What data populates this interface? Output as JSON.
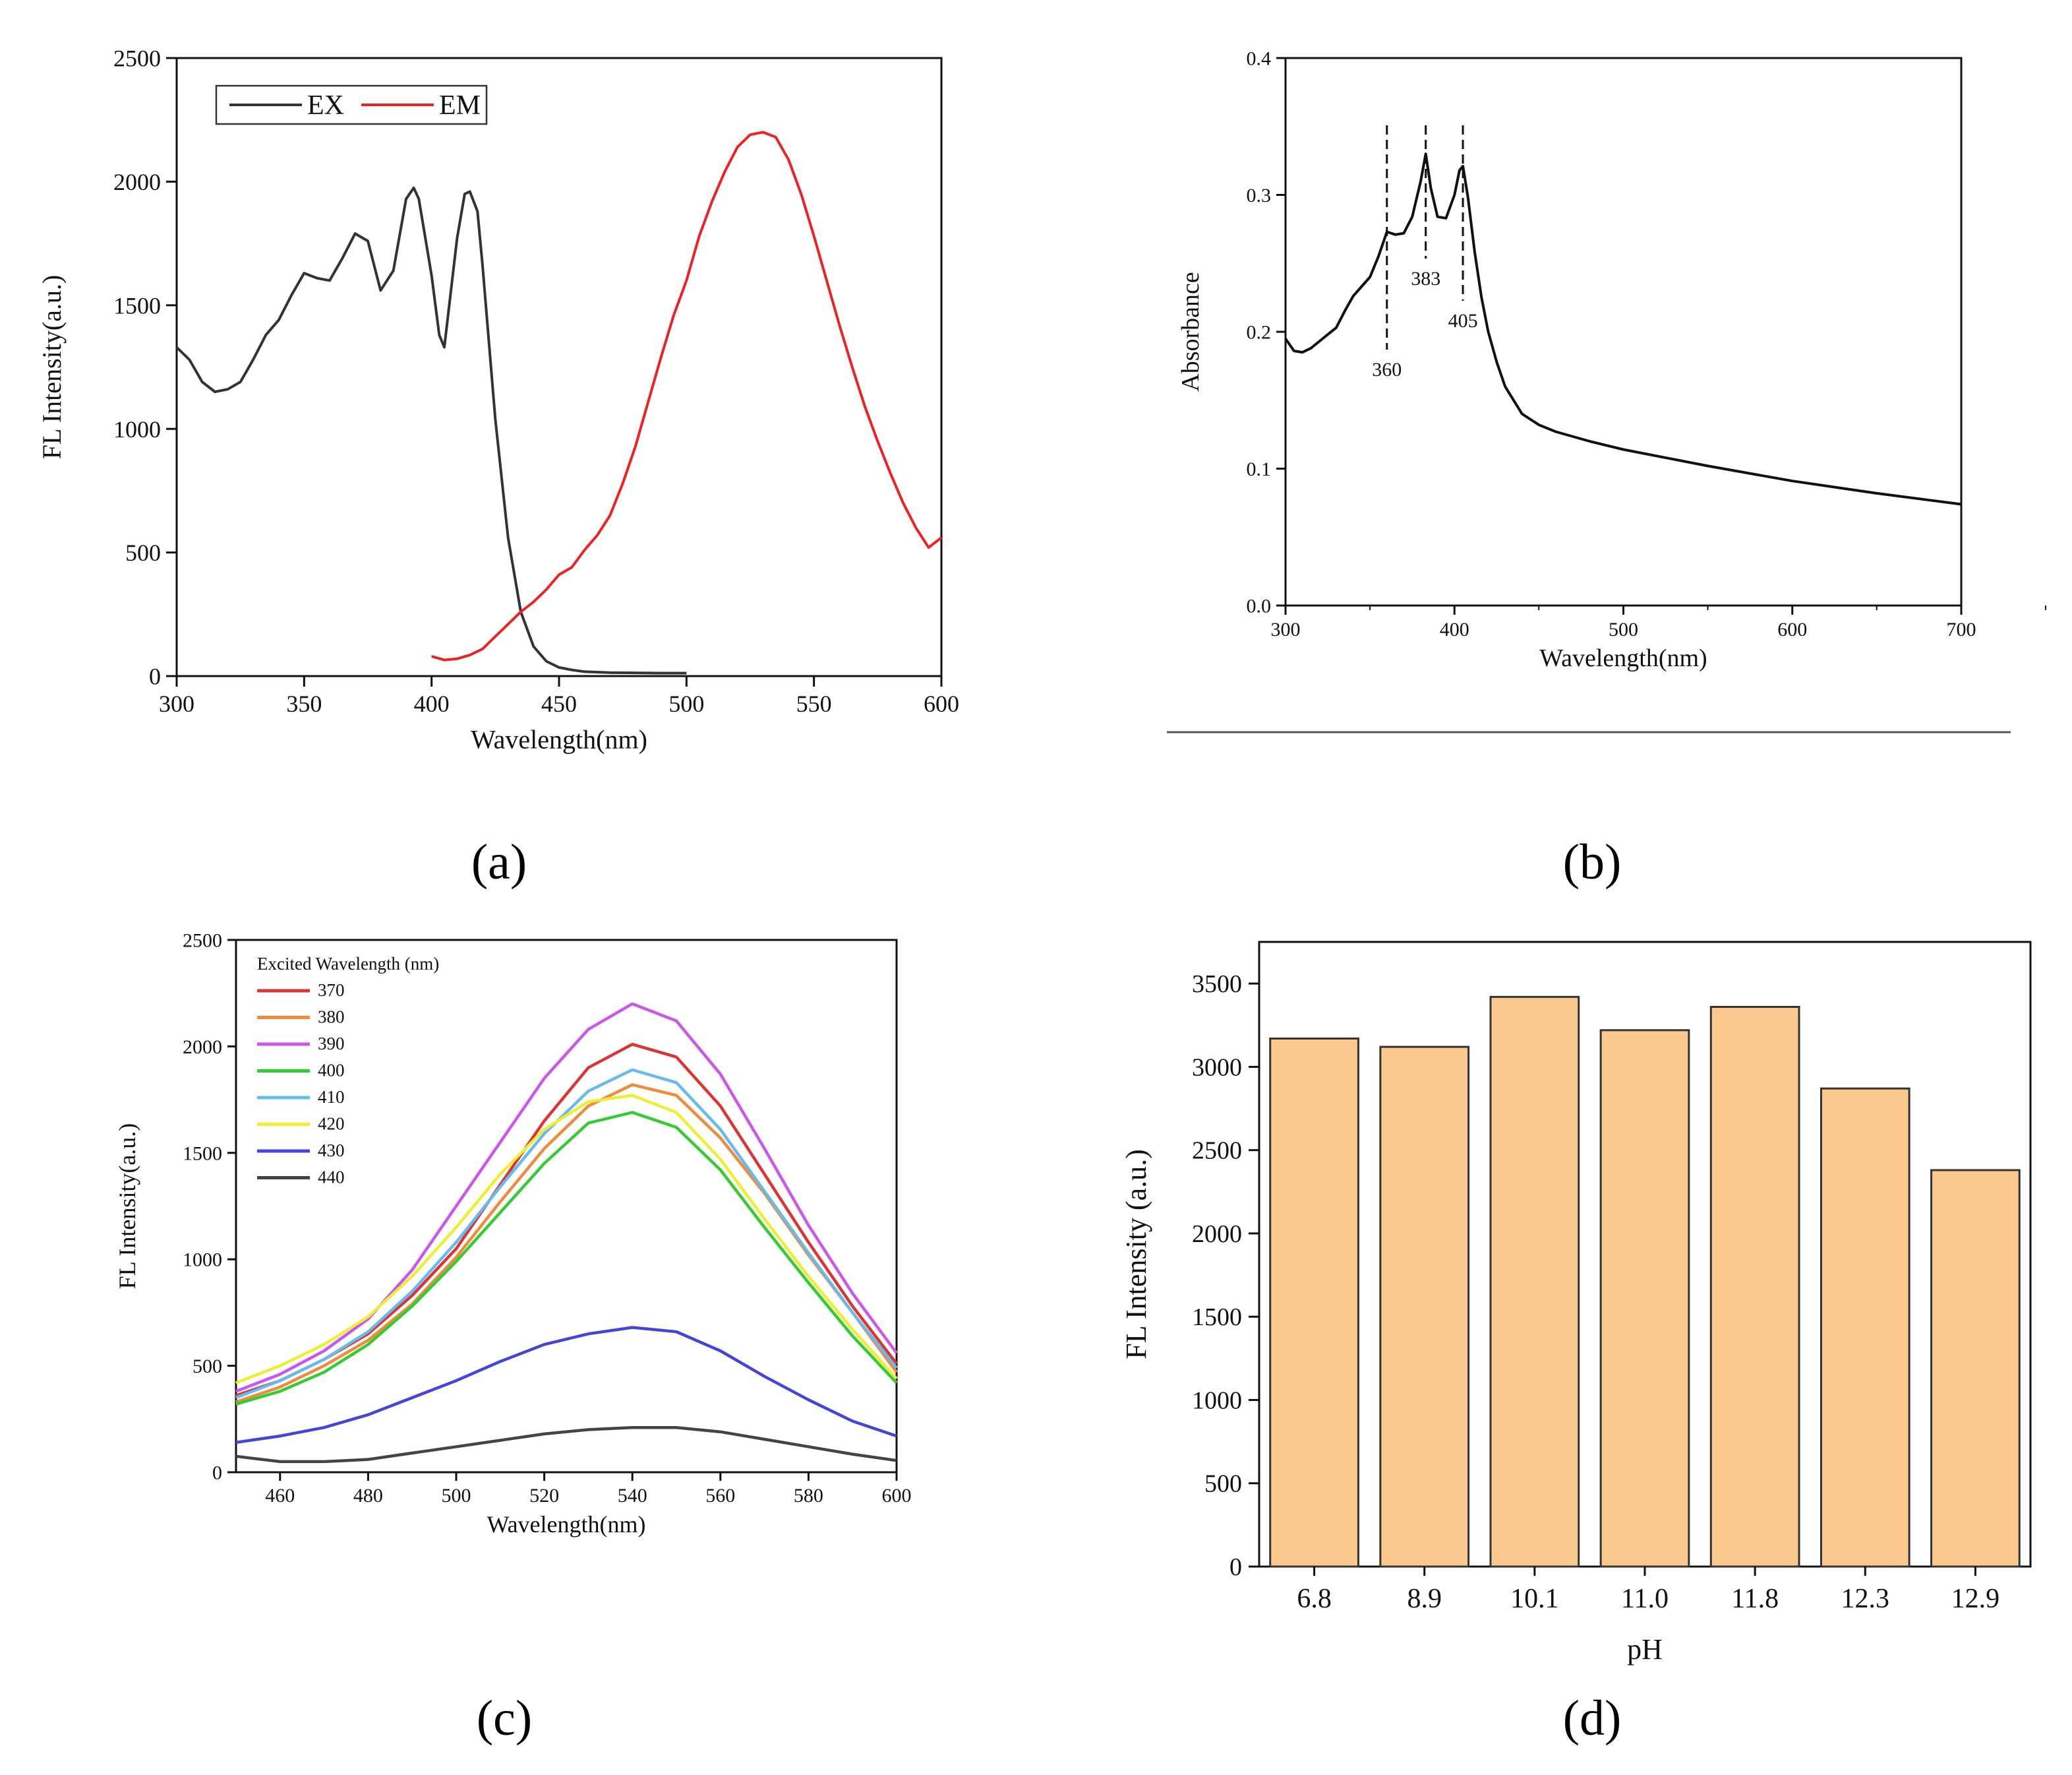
{
  "panels": {
    "a": {
      "label": "(a)",
      "chart_data": {
        "type": "line",
        "xlabel": "Wavelength(nm)",
        "ylabel": "FL Intensity(a.u.)",
        "xlim": [
          300,
          600
        ],
        "ylim": [
          0,
          2500
        ],
        "xticks": [
          300,
          350,
          400,
          450,
          500,
          550,
          600
        ],
        "yticks": [
          0,
          500,
          1000,
          1500,
          2000,
          2500
        ],
        "legend_position": "top-left",
        "series": [
          {
            "name": "EX",
            "color": "#333333",
            "x": [
              300,
              305,
              310,
              315,
              320,
              325,
              330,
              335,
              340,
              345,
              350,
              355,
              360,
              365,
              370,
              375,
              380,
              385,
              390,
              393,
              395,
              400,
              403,
              405,
              410,
              413,
              415,
              418,
              420,
              425,
              430,
              435,
              440,
              445,
              450,
              455,
              460,
              470,
              480,
              490,
              500
            ],
            "y": [
              1330,
              1280,
              1190,
              1150,
              1160,
              1190,
              1280,
              1380,
              1440,
              1540,
              1630,
              1610,
              1600,
              1690,
              1790,
              1760,
              1560,
              1640,
              1930,
              1975,
              1930,
              1620,
              1380,
              1330,
              1770,
              1950,
              1960,
              1880,
              1660,
              1040,
              560,
              260,
              120,
              60,
              35,
              25,
              18,
              14,
              13,
              12,
              12
            ]
          },
          {
            "name": "EM",
            "color": "#ee2222",
            "x": [
              400,
              405,
              410,
              415,
              420,
              425,
              430,
              435,
              440,
              445,
              450,
              455,
              460,
              465,
              470,
              475,
              480,
              485,
              490,
              495,
              500,
              505,
              510,
              515,
              520,
              525,
              530,
              535,
              540,
              545,
              550,
              555,
              560,
              565,
              570,
              575,
              580,
              585,
              590,
              595,
              600
            ],
            "y": [
              80,
              65,
              70,
              85,
              110,
              160,
              210,
              260,
              300,
              350,
              410,
              440,
              510,
              570,
              650,
              780,
              930,
              1110,
              1290,
              1460,
              1600,
              1780,
              1920,
              2040,
              2140,
              2190,
              2200,
              2180,
              2090,
              1950,
              1780,
              1600,
              1420,
              1250,
              1090,
              950,
              820,
              700,
              600,
              520,
              560
            ]
          }
        ]
      }
    },
    "b": {
      "label": "(b)",
      "chart_data": {
        "type": "line",
        "xlabel": "Wavelength(nm)",
        "ylabel": "Absorbance",
        "xlim": [
          300,
          700
        ],
        "ylim": [
          0.0,
          0.4
        ],
        "xticks": [
          300,
          400,
          500,
          600,
          700
        ],
        "xtick_labels": [
          "300",
          "400",
          "500",
          "600",
          "700"
        ],
        "yticks": [
          0.0,
          0.1,
          0.2,
          0.3,
          0.4
        ],
        "ytick_labels": [
          "0.0",
          "0.1",
          "0.2",
          "0.3",
          "0.4"
        ],
        "annotations": [
          {
            "text": "360",
            "x": 360
          },
          {
            "text": "383",
            "x": 383
          },
          {
            "text": "405",
            "x": 405
          }
        ],
        "series": [
          {
            "name": "Absorbance",
            "color": "#111111",
            "x": [
              300,
              305,
              310,
              315,
              320,
              325,
              330,
              335,
              340,
              345,
              350,
              355,
              360,
              365,
              370,
              375,
              380,
              383,
              386,
              390,
              395,
              400,
              403,
              405,
              408,
              412,
              416,
              420,
              425,
              430,
              440,
              450,
              460,
              480,
              500,
              550,
              600,
              650,
              700
            ],
            "y": [
              0.195,
              0.186,
              0.185,
              0.188,
              0.193,
              0.198,
              0.203,
              0.215,
              0.226,
              0.233,
              0.24,
              0.255,
              0.273,
              0.271,
              0.272,
              0.284,
              0.31,
              0.33,
              0.305,
              0.284,
              0.283,
              0.3,
              0.318,
              0.321,
              0.298,
              0.258,
              0.225,
              0.2,
              0.178,
              0.16,
              0.14,
              0.132,
              0.127,
              0.12,
              0.114,
              0.102,
              0.091,
              0.082,
              0.074
            ]
          }
        ]
      }
    },
    "c": {
      "label": "(c)",
      "chart_data": {
        "type": "line",
        "xlabel": "Wavelength(nm)",
        "ylabel": "FL Intensity(a.u.)",
        "xlim": [
          450,
          600
        ],
        "ylim": [
          0,
          2500
        ],
        "xticks": [
          460,
          480,
          500,
          520,
          540,
          560,
          580,
          600
        ],
        "yticks": [
          0,
          500,
          1000,
          1500,
          2000,
          2500
        ],
        "legend_title": "Excited Wavelength (nm)",
        "legend_position": "top-left",
        "x": [
          450,
          460,
          470,
          480,
          490,
          500,
          510,
          520,
          530,
          540,
          550,
          560,
          570,
          580,
          590,
          600
        ],
        "series": [
          {
            "name": "370",
            "color": "#dd3333",
            "values": [
              360,
              430,
              530,
              650,
              830,
              1050,
              1350,
              1650,
              1900,
              2010,
              1950,
              1720,
              1400,
              1080,
              780,
              510
            ]
          },
          {
            "name": "380",
            "color": "#f08a3c",
            "values": [
              330,
              400,
              500,
              620,
              790,
              1010,
              1270,
              1520,
              1720,
              1820,
              1770,
              1570,
              1310,
              1020,
              750,
              470
            ]
          },
          {
            "name": "390",
            "color": "#cc55ee",
            "values": [
              380,
              460,
              570,
              720,
              950,
              1250,
              1550,
              1850,
              2080,
              2200,
              2120,
              1870,
              1520,
              1160,
              840,
              560
            ]
          },
          {
            "name": "400",
            "color": "#33cc33",
            "values": [
              320,
              380,
              470,
              600,
              780,
              990,
              1220,
              1450,
              1640,
              1690,
              1620,
              1420,
              1150,
              890,
              640,
              420
            ]
          },
          {
            "name": "410",
            "color": "#66bbee",
            "values": [
              350,
              430,
              530,
              660,
              850,
              1080,
              1340,
              1590,
              1790,
              1890,
              1830,
              1610,
              1320,
              1030,
              750,
              490
            ]
          },
          {
            "name": "420",
            "color": "#eeee33",
            "values": [
              420,
              500,
              600,
              730,
              920,
              1150,
              1400,
              1610,
              1740,
              1770,
              1690,
              1470,
              1190,
              920,
              670,
              440
            ]
          },
          {
            "name": "430",
            "color": "#4444dd",
            "values": [
              140,
              170,
              210,
              270,
              350,
              430,
              520,
              600,
              650,
              680,
              660,
              570,
              450,
              340,
              240,
              170
            ]
          },
          {
            "name": "440",
            "color": "#444444",
            "values": [
              75,
              50,
              50,
              60,
              90,
              120,
              150,
              180,
              200,
              210,
              210,
              190,
              155,
              120,
              85,
              55
            ]
          }
        ]
      }
    },
    "d": {
      "label": "(d)",
      "chart_data": {
        "type": "bar",
        "xlabel": "pH",
        "ylabel": "FL Intensity (a.u.)",
        "ylim": [
          0,
          3750
        ],
        "yticks": [
          0,
          500,
          1000,
          1500,
          2000,
          2500,
          3000,
          3500
        ],
        "categories": [
          "6.8",
          "8.9",
          "10.1",
          "11.0",
          "11.8",
          "12.3",
          "12.9"
        ],
        "values": [
          3170,
          3120,
          3420,
          3220,
          3360,
          2870,
          2380
        ],
        "bar_color": "#fbc98e",
        "bar_edge_color": "#333333"
      }
    }
  }
}
